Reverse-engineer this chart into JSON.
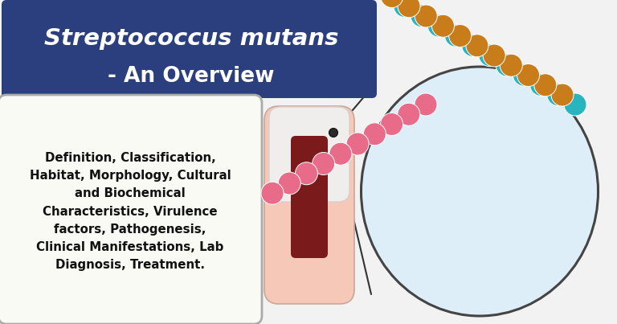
{
  "bg_color": "#f2f2f2",
  "title_box_color": "#2b3f7e",
  "title_line1": "Streptococcus mutans",
  "title_line2": "- An Overview",
  "title_text_color": "#ffffff",
  "body_text": "Definition, Classification,\nHabitat, Morphology, Cultural\nand Biochemical\nCharacteristics, Virulence\nfactors, Pathogenesis,\nClinical Manifestations, Lab\nDiagnosis, Treatment.",
  "body_text_color": "#111111",
  "oval_bg_color": "#ddeef8",
  "oval_border_color": "#444444",
  "chain_brown": "#c97d1a",
  "chain_teal": "#29b5c0",
  "chain_pink": "#e86b8a",
  "tooth_outer": "#f5c8b8",
  "tooth_enamel": "#f0eeec",
  "tooth_pulp": "#7a1a1a",
  "line_color": "#333333"
}
